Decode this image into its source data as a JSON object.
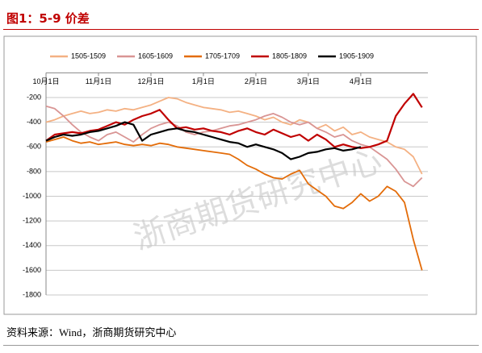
{
  "chart_data": {
    "type": "line",
    "title": "图1：5-9 价差",
    "source": "资料来源：Wind，浙商期货研究中心",
    "watermark": "浙商期货研究中心",
    "categories": [
      "10月1日",
      null,
      null,
      null,
      null,
      null,
      "11月1日",
      null,
      null,
      null,
      null,
      null,
      "12月1日",
      null,
      null,
      null,
      null,
      null,
      "1月1日",
      null,
      null,
      null,
      null,
      null,
      "2月1日",
      null,
      null,
      null,
      null,
      null,
      "3月1日",
      null,
      null,
      null,
      null,
      null,
      "4月1日",
      null,
      null,
      null,
      null,
      null,
      null,
      null
    ],
    "ylim": [
      -1800,
      0
    ],
    "yticks": [
      -1800,
      -1600,
      -1400,
      -1200,
      -1000,
      -800,
      -600,
      -400,
      -200
    ],
    "grid": true,
    "legend": "top",
    "series": [
      {
        "name": "1505-1509",
        "color": "#f4b183",
        "values": [
          -400,
          -380,
          -350,
          -330,
          -310,
          -330,
          -320,
          -300,
          -310,
          -290,
          -300,
          -280,
          -260,
          -230,
          -200,
          -210,
          -240,
          -260,
          -280,
          -290,
          -300,
          -320,
          -310,
          -330,
          -350,
          -380,
          -360,
          -400,
          -420,
          -380,
          -400,
          -450,
          -420,
          -470,
          -440,
          -500,
          -480,
          -520,
          -540,
          -560,
          -600,
          -620,
          -680,
          -820
        ]
      },
      {
        "name": "1605-1609",
        "color": "#d99594",
        "values": [
          -270,
          -290,
          -350,
          -420,
          -480,
          -520,
          -550,
          -500,
          -480,
          -520,
          -560,
          -500,
          -450,
          -420,
          -400,
          -430,
          -480,
          -500,
          -480,
          -470,
          -450,
          -430,
          -420,
          -400,
          -380,
          -350,
          -330,
          -360,
          -400,
          -420,
          -400,
          -450,
          -480,
          -520,
          -500,
          -550,
          -580,
          -600,
          -650,
          -700,
          -780,
          -880,
          -920,
          -850
        ]
      },
      {
        "name": "1705-1709",
        "color": "#e36c09",
        "values": [
          -560,
          -540,
          -520,
          -550,
          -570,
          -560,
          -580,
          -570,
          -560,
          -580,
          -590,
          -580,
          -590,
          -570,
          -580,
          -600,
          -610,
          -620,
          -630,
          -640,
          -650,
          -660,
          -700,
          -750,
          -780,
          -820,
          -850,
          -860,
          -820,
          -790,
          -900,
          -950,
          -1000,
          -1080,
          -1100,
          -1050,
          -980,
          -1040,
          -1000,
          -920,
          -960,
          -1050,
          -1350,
          -1600
        ]
      },
      {
        "name": "1805-1809",
        "color": "#c00000",
        "values": [
          -550,
          -500,
          -490,
          -480,
          -490,
          -470,
          -460,
          -430,
          -400,
          -420,
          -380,
          -350,
          -330,
          -300,
          -380,
          -450,
          -440,
          -460,
          -450,
          -470,
          -480,
          -500,
          -470,
          -450,
          -480,
          -500,
          -460,
          -490,
          -520,
          -500,
          -550,
          -500,
          -540,
          -600,
          -580,
          -600,
          -610,
          -600,
          -580,
          -550,
          -350,
          -250,
          -170,
          -280
        ]
      },
      {
        "name": "1905-1909",
        "color": "#000000",
        "values": [
          -550,
          -520,
          -500,
          -510,
          -500,
          -480,
          -470,
          -450,
          -430,
          -400,
          -420,
          -550,
          -500,
          -480,
          -460,
          -450,
          -470,
          -480,
          -500,
          -520,
          -540,
          -560,
          -570,
          -600,
          -580,
          -600,
          -620,
          -650,
          -700,
          -680,
          -650,
          -640,
          -620,
          -610,
          -630,
          -620,
          -600,
          null,
          null,
          null,
          null,
          null,
          null,
          null
        ]
      }
    ]
  }
}
